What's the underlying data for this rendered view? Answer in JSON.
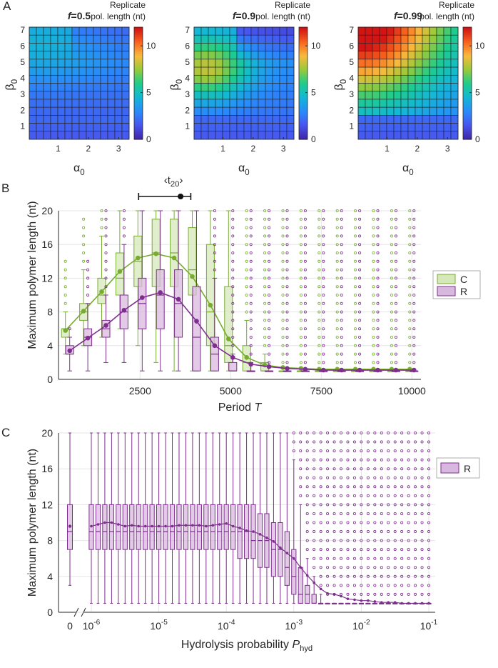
{
  "panel_labels": {
    "a": "A",
    "b": "B",
    "c": "C"
  },
  "colors": {
    "C_stroke": "#77ac30",
    "C_fill": "#d6e8b9",
    "R_stroke": "#7e2f8e",
    "R_fill": "#d9b8df",
    "heat_empty": "#1f1f5e",
    "axis": "#262626",
    "grid": "#e6e6e6"
  },
  "chart_data": [
    {
      "type": "heatmap",
      "title_prefix": "f",
      "title_value": "=0.5",
      "colorbar_label_1": "Replicate",
      "colorbar_label_2": "pol. length (nt)",
      "colorbar_ticks": [
        "0",
        "5",
        "10"
      ],
      "clim": [
        0,
        12
      ],
      "xlabel": "α",
      "xlabel_sub": "0",
      "ylabel": "β",
      "ylabel_sub": "0",
      "xticks": [
        "1",
        "2",
        "3"
      ],
      "yticks": [
        "1",
        "2",
        "3",
        "4",
        "5",
        "6",
        "7"
      ],
      "model": {
        "base": 1.6,
        "peak": 1.4,
        "cx": 1,
        "cy": 10.5,
        "sx": 6.5,
        "sy": 3.0,
        "top_dim": 0.3
      }
    },
    {
      "type": "heatmap",
      "title_prefix": "f",
      "title_value": "=0.9",
      "colorbar_label_1": "Replicate",
      "colorbar_label_2": "pol. length (nt)",
      "colorbar_ticks": [
        "0",
        "5",
        "10"
      ],
      "clim": [
        0,
        12
      ],
      "xlabel": "α",
      "xlabel_sub": "0",
      "ylabel": "β",
      "ylabel_sub": "0",
      "xticks": [
        "1",
        "2",
        "3"
      ],
      "yticks": [
        "1",
        "2",
        "3",
        "4",
        "5",
        "6",
        "7"
      ],
      "model": {
        "base": 2.0,
        "peak": 5.2,
        "cx": 1.3,
        "cy": 8.2,
        "sx": 4.0,
        "sy": 2.6,
        "top_dim": 0.6
      }
    },
    {
      "type": "heatmap",
      "title_prefix": "f",
      "title_value": "=0.99",
      "colorbar_label_1": "Replicate",
      "colorbar_label_2": "pol. length (nt)",
      "colorbar_ticks": [
        "0",
        "5",
        "10"
      ],
      "clim": [
        0,
        12
      ],
      "xlabel": "α",
      "xlabel_sub": "0",
      "ylabel": "β",
      "ylabel_sub": "0",
      "xticks": [
        "1",
        "2",
        "3"
      ],
      "yticks": [
        "1",
        "2",
        "3",
        "4",
        "5",
        "6",
        "7"
      ],
      "model": {
        "base": 2.4,
        "peak": 9.2,
        "cx": 0,
        "cy": 14,
        "sx": 7.5,
        "sy": 6.5,
        "top_dim": 0
      }
    },
    {
      "type": "box",
      "annotation": "‹t",
      "annotation_sub": "20",
      "annotation_close": "›",
      "annotation_interval": [
        2500,
        3500,
        3900
      ],
      "xlabel": "Period",
      "xlabel_var": "T",
      "ylabel": "Maximum polymer length (nt)",
      "xlim": [
        250,
        10250
      ],
      "ylim": [
        0,
        20
      ],
      "xticks": [
        2500,
        5000,
        7500,
        10000
      ],
      "xtick_labels": [
        "2500",
        "5000",
        "7500",
        "10000"
      ],
      "yticks": [
        0,
        4,
        8,
        12,
        16,
        20
      ],
      "ytick_labels": [
        "0",
        "4",
        "8",
        "12",
        "16",
        "20"
      ],
      "legend": [
        "C",
        "R"
      ],
      "x": [
        500,
        1000,
        1500,
        2000,
        2500,
        3000,
        3500,
        4000,
        4500,
        5000,
        5500,
        6000,
        6500,
        7000,
        7500,
        8000,
        8500,
        9000,
        9500,
        10000
      ],
      "series": [
        {
          "name": "C",
          "q1": [
            5,
            7,
            9,
            10,
            11,
            11,
            11,
            10,
            4,
            2,
            1,
            1,
            1,
            1,
            1,
            1,
            1,
            1,
            1,
            1
          ],
          "median": [
            6,
            8,
            10,
            12,
            14,
            15,
            15,
            13,
            8,
            4,
            2,
            1,
            1,
            1,
            1,
            1,
            1,
            1,
            1,
            1
          ],
          "q3": [
            6,
            9,
            12,
            15,
            17,
            19,
            19,
            18,
            16,
            11,
            4,
            2,
            1,
            1,
            1,
            1,
            1,
            1,
            1,
            1
          ],
          "whisker_low": [
            3,
            4,
            5,
            6,
            4,
            2,
            1,
            1,
            1,
            1,
            1,
            1,
            1,
            1,
            1,
            1,
            1,
            1,
            1,
            1
          ],
          "whisker_high": [
            8,
            13,
            17,
            20,
            20,
            20,
            20,
            20,
            20,
            20,
            7,
            3,
            1,
            1,
            1,
            1,
            1,
            1,
            1,
            1
          ],
          "mean": [
            5.8,
            8.1,
            10.4,
            12.8,
            14.4,
            14.9,
            14.4,
            12.2,
            8.8,
            4.8,
            2.6,
            1.7,
            1.4,
            1.3,
            1.2,
            1.2,
            1.2,
            1.2,
            1.2,
            1.2
          ],
          "outlier_top": [
            14,
            19,
            20,
            20,
            20,
            20,
            20,
            20,
            20,
            20,
            20,
            20,
            20,
            20,
            20,
            20,
            20,
            20,
            20,
            20
          ]
        },
        {
          "name": "R",
          "q1": [
            3,
            4,
            5,
            6,
            6,
            6,
            5,
            1,
            1,
            1,
            1,
            1,
            1,
            1,
            1,
            1,
            1,
            1,
            1,
            1
          ],
          "median": [
            3,
            5,
            6,
            8,
            9,
            10,
            9,
            5,
            3,
            1,
            1,
            1,
            1,
            1,
            1,
            1,
            1,
            1,
            1,
            1
          ],
          "q3": [
            4,
            6,
            7,
            10,
            12,
            13,
            13,
            11,
            5,
            2,
            1,
            1,
            1,
            1,
            1,
            1,
            1,
            1,
            1,
            1
          ],
          "whisker_low": [
            1,
            1,
            2,
            2,
            1,
            1,
            1,
            1,
            1,
            1,
            1,
            1,
            1,
            1,
            1,
            1,
            1,
            1,
            1,
            1
          ],
          "whisker_high": [
            5,
            9,
            10,
            16,
            20,
            20,
            20,
            20,
            12,
            3,
            2,
            1,
            1,
            1,
            1,
            1,
            1,
            1,
            1,
            1
          ],
          "mean": [
            3.4,
            4.9,
            6.4,
            8.2,
            9.7,
            10.3,
            9.5,
            6.9,
            4.0,
            2.6,
            1.8,
            1.5,
            1.3,
            1.2,
            1.1,
            1.1,
            1.1,
            1.1,
            1.1,
            1.1
          ],
          "outlier_top": [
            6,
            14,
            20,
            20,
            20,
            20,
            20,
            20,
            20,
            20,
            20,
            20,
            20,
            20,
            20,
            20,
            20,
            20,
            20,
            20
          ]
        }
      ]
    },
    {
      "type": "box",
      "xscale": "log",
      "xlabel": "Hydrolysis probability",
      "xlabel_var": "P",
      "xlabel_sub": "hyd",
      "ylabel": "Maximum polymer length (nt)",
      "ylim": [
        0,
        20
      ],
      "yticks": [
        0,
        4,
        8,
        12,
        16,
        20
      ],
      "ytick_labels": [
        "0",
        "4",
        "8",
        "12",
        "16",
        "20"
      ],
      "xtick_zero": "0",
      "xtick_base": "10",
      "xtick_exponents": [
        "-6",
        "-5",
        "-4",
        "-3",
        "-2",
        "-1"
      ],
      "legend": [
        "R"
      ],
      "zero_box": {
        "q1": 7,
        "median": 9,
        "q3": 12,
        "whisker_low": 3,
        "whisker_high": 20,
        "mean": 9.6
      },
      "log10_x": [
        -6,
        -5.9,
        -5.8,
        -5.7,
        -5.6,
        -5.5,
        -5.4,
        -5.3,
        -5.2,
        -5.1,
        -5,
        -4.9,
        -4.8,
        -4.7,
        -4.6,
        -4.5,
        -4.4,
        -4.3,
        -4.2,
        -4.1,
        -4,
        -3.9,
        -3.8,
        -3.7,
        -3.6,
        -3.5,
        -3.4,
        -3.3,
        -3.2,
        -3.1,
        -3,
        -2.9,
        -2.8,
        -2.7,
        -2.6,
        -2.5,
        -2.4,
        -2.3,
        -2.2,
        -2.1,
        -2,
        -1.9,
        -1.8,
        -1.7,
        -1.6,
        -1.5,
        -1.4,
        -1.3,
        -1.2,
        -1.1,
        -1
      ],
      "series": [
        {
          "name": "R",
          "q1": [
            7,
            7,
            7,
            7,
            7,
            7,
            7,
            7,
            7,
            7,
            7,
            7,
            7,
            7,
            7,
            7,
            7,
            7,
            7,
            7,
            7,
            7,
            6,
            6,
            6,
            5,
            5,
            4,
            4,
            3,
            2,
            1,
            1,
            1,
            1,
            1,
            1,
            1,
            1,
            1,
            1,
            1,
            1,
            1,
            1,
            1,
            1,
            1,
            1,
            1,
            1
          ],
          "median": [
            9,
            9,
            9,
            9,
            9,
            9,
            9,
            9,
            9,
            9,
            9,
            9,
            9,
            9,
            9,
            9,
            9,
            9,
            9,
            9,
            9,
            9,
            9,
            9,
            8,
            8,
            8,
            7,
            7,
            5,
            4,
            2,
            2,
            1,
            1,
            1,
            1,
            1,
            1,
            1,
            1,
            1,
            1,
            1,
            1,
            1,
            1,
            1,
            1,
            1,
            1
          ],
          "q3": [
            12,
            12,
            12,
            12,
            12,
            12,
            12,
            12,
            12,
            12,
            12,
            12,
            12,
            12,
            12,
            12,
            12,
            12,
            12,
            12,
            12,
            12,
            12,
            12,
            12,
            11,
            11,
            10,
            10,
            9,
            7,
            5,
            3,
            2,
            1,
            1,
            1,
            1,
            1,
            1,
            1,
            1,
            1,
            1,
            1,
            1,
            1,
            1,
            1,
            1,
            1
          ],
          "whisker_low": [
            1,
            1,
            1,
            1,
            1,
            1,
            1,
            1,
            1,
            1,
            1,
            1,
            1,
            1,
            1,
            1,
            1,
            1,
            1,
            1,
            1,
            1,
            1,
            1,
            1,
            1,
            1,
            1,
            1,
            1,
            1,
            1,
            1,
            1,
            1,
            1,
            1,
            1,
            1,
            1,
            1,
            1,
            1,
            1,
            1,
            1,
            1,
            1,
            1,
            1,
            1
          ],
          "whisker_high": [
            20,
            20,
            20,
            20,
            20,
            20,
            20,
            20,
            20,
            20,
            20,
            20,
            20,
            20,
            20,
            20,
            20,
            20,
            20,
            20,
            20,
            20,
            20,
            20,
            20,
            20,
            20,
            20,
            20,
            20,
            17,
            12,
            6,
            4,
            2,
            1,
            1,
            1,
            1,
            1,
            1,
            1,
            1,
            1,
            1,
            1,
            1,
            1,
            1,
            1,
            1
          ],
          "mean": [
            9.6,
            9.8,
            10.0,
            10.0,
            9.8,
            9.6,
            9.7,
            9.6,
            9.6,
            9.6,
            9.6,
            9.6,
            9.6,
            9.7,
            9.7,
            9.7,
            9.7,
            9.6,
            9.7,
            9.8,
            9.9,
            9.6,
            9.4,
            9.1,
            9.0,
            8.7,
            8.3,
            7.9,
            7.2,
            6.6,
            6.0,
            5.0,
            4.1,
            3.3,
            2.6,
            2.1,
            2.0,
            1.8,
            1.5,
            1.4,
            1.3,
            1.3,
            1.2,
            1.1,
            1.1,
            1.1,
            1.0,
            1.0,
            1.0,
            1.0,
            1.0
          ],
          "outlier_top": [
            20,
            20,
            20,
            20,
            20,
            20,
            20,
            20,
            20,
            20,
            20,
            20,
            20,
            20,
            20,
            20,
            20,
            20,
            20,
            20,
            20,
            20,
            20,
            20,
            20,
            20,
            20,
            20,
            20,
            20,
            20,
            20,
            20,
            20,
            20,
            20,
            20,
            20,
            20,
            20,
            20,
            20,
            20,
            20,
            20,
            20,
            20,
            20,
            20,
            20,
            20
          ]
        }
      ]
    }
  ]
}
